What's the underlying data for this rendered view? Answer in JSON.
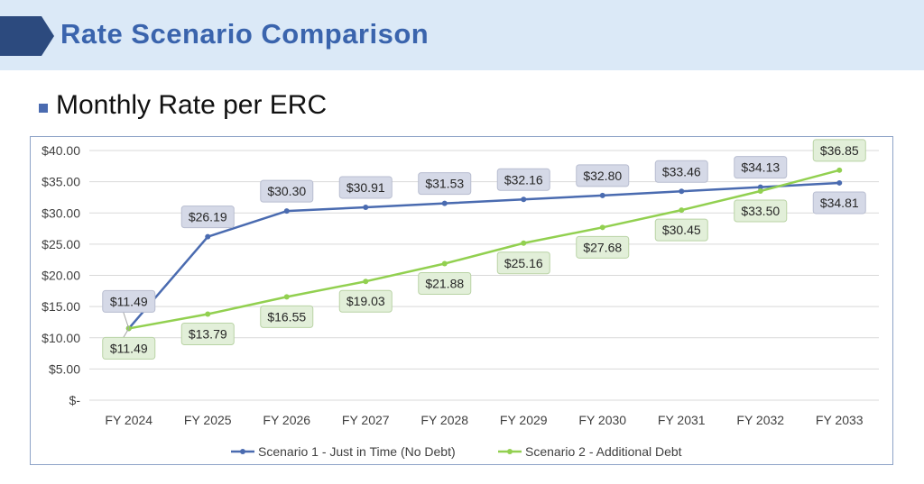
{
  "header": {
    "title": "Rate Scenario Comparison"
  },
  "section": {
    "subtitle": "Monthly Rate per ERC"
  },
  "colors": {
    "banner": "#dbe9f7",
    "title": "#3a64ad",
    "series1": "#4a6bb0",
    "series2": "#92d050",
    "label1_bg": "#d5d9e7",
    "label2_bg": "#e2efd9"
  },
  "chart_data": {
    "type": "line",
    "title": "",
    "xlabel": "",
    "ylabel": "",
    "categories": [
      "FY 2024",
      "FY 2025",
      "FY 2026",
      "FY 2027",
      "FY 2028",
      "FY 2029",
      "FY 2030",
      "FY 2031",
      "FY 2032",
      "FY 2033"
    ],
    "ylim": [
      0,
      40
    ],
    "yticks": [
      0,
      5,
      10,
      15,
      20,
      25,
      30,
      35,
      40
    ],
    "ytick_labels": [
      "$-",
      "$5.00",
      "$10.00",
      "$15.00",
      "$20.00",
      "$25.00",
      "$30.00",
      "$35.00",
      "$40.00"
    ],
    "grid": true,
    "legend_position": "bottom",
    "series": [
      {
        "name": "Scenario 1 - Just in Time (No Debt)",
        "color": "#4a6bb0",
        "values": [
          11.49,
          26.19,
          30.3,
          30.91,
          31.53,
          32.16,
          32.8,
          33.46,
          34.13,
          34.81
        ],
        "labels": [
          "$11.49",
          "$26.19",
          "$30.30",
          "$30.91",
          "$31.53",
          "$32.16",
          "$32.80",
          "$33.46",
          "$34.13",
          "$34.81"
        ],
        "label_positions": [
          "above",
          "above",
          "above",
          "above",
          "above",
          "above",
          "above",
          "above",
          "above",
          "below"
        ]
      },
      {
        "name": "Scenario 2 - Additional Debt",
        "color": "#92d050",
        "values": [
          11.49,
          13.79,
          16.55,
          19.03,
          21.88,
          25.16,
          27.68,
          30.45,
          33.5,
          36.85
        ],
        "labels": [
          "$11.49",
          "$13.79",
          "$16.55",
          "$19.03",
          "$21.88",
          "$25.16",
          "$27.68",
          "$30.45",
          "$33.50",
          "$36.85"
        ],
        "label_positions": [
          "below",
          "below",
          "below",
          "below",
          "below",
          "below",
          "below",
          "below",
          "below",
          "above"
        ]
      }
    ]
  }
}
